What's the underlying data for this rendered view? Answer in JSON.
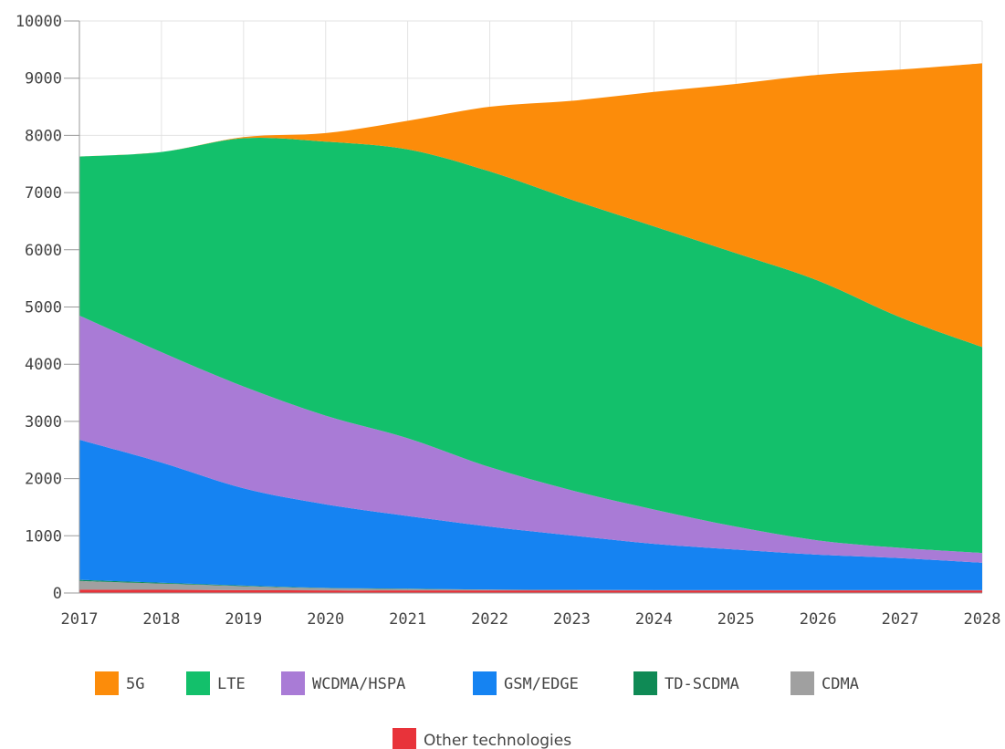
{
  "chart_data": {
    "type": "area",
    "stacked": true,
    "x": [
      2017,
      2018,
      2019,
      2020,
      2021,
      2022,
      2023,
      2024,
      2025,
      2026,
      2027,
      2028
    ],
    "x_ticks": [
      "2017",
      "2018",
      "2019",
      "2020",
      "2021",
      "2022",
      "2023",
      "2024",
      "2025",
      "2026",
      "2027",
      "2028"
    ],
    "y_ticks": [
      "0",
      "1000",
      "2000",
      "3000",
      "4000",
      "5000",
      "6000",
      "7000",
      "8000",
      "9000",
      "10000"
    ],
    "ylim": [
      0,
      10000
    ],
    "xlim": [
      2017,
      2028
    ],
    "grid": true,
    "legend_position": "bottom",
    "series": [
      {
        "name": "Other technologies",
        "color": "#e8333a",
        "values": [
          60,
          55,
          50,
          45,
          45,
          45,
          45,
          45,
          45,
          45,
          45,
          45
        ]
      },
      {
        "name": "CDMA",
        "color": "#a0a0a0",
        "values": [
          150,
          110,
          70,
          40,
          25,
          15,
          10,
          5,
          5,
          5,
          5,
          5
        ]
      },
      {
        "name": "TD-SCDMA",
        "color": "#0f8a55",
        "values": [
          20,
          15,
          10,
          5,
          5,
          0,
          0,
          0,
          0,
          0,
          0,
          0
        ]
      },
      {
        "name": "GSM/EDGE",
        "color": "#1583f2",
        "values": [
          2450,
          2100,
          1700,
          1460,
          1270,
          1100,
          950,
          810,
          710,
          620,
          560,
          480
        ]
      },
      {
        "name": "WCDMA/HSPA",
        "color": "#a97bd6",
        "values": [
          2170,
          1930,
          1780,
          1550,
          1360,
          1040,
          790,
          600,
          400,
          250,
          180,
          170
        ]
      },
      {
        "name": "LTE",
        "color": "#13c06b",
        "values": [
          2780,
          3500,
          4340,
          4790,
          5050,
          5170,
          5080,
          4950,
          4780,
          4540,
          4030,
          3600
        ]
      },
      {
        "name": "5G",
        "color": "#fc8c0a",
        "values": [
          0,
          0,
          20,
          150,
          500,
          1130,
          1730,
          2350,
          2960,
          3600,
          4330,
          4960
        ]
      }
    ],
    "legend_order": [
      "5G",
      "LTE",
      "WCDMA/HSPA",
      "GSM/EDGE",
      "TD-SCDMA",
      "CDMA",
      "Other technologies"
    ]
  }
}
